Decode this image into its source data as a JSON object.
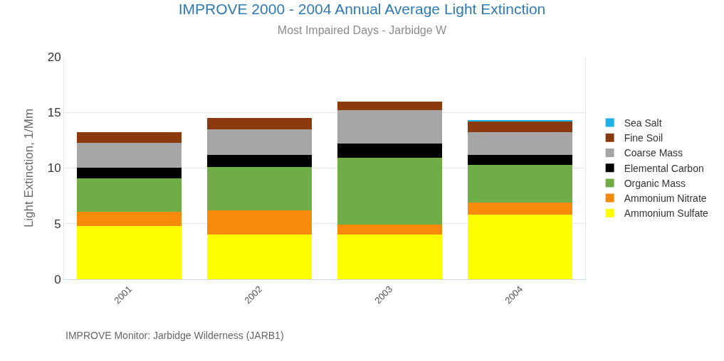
{
  "chart_data": {
    "type": "bar",
    "stacked": true,
    "title": "IMPROVE 2000 - 2004 Annual Average Light Extinction",
    "subtitle": "Most Impaired Days - Jarbidge W",
    "ylabel": "Light Extinction, 1/Mm",
    "categories": [
      "2001",
      "2002",
      "2003",
      "2004"
    ],
    "series": [
      {
        "name": "Ammonium Sulfate",
        "color": "#ffff00",
        "values": [
          4.8,
          4.0,
          4.0,
          5.8
        ]
      },
      {
        "name": "Ammonium Nitrate",
        "color": "#f78a0b",
        "values": [
          1.3,
          2.2,
          0.9,
          1.1
        ]
      },
      {
        "name": "Organic Mass",
        "color": "#70ad47",
        "values": [
          3.0,
          3.9,
          6.0,
          3.4
        ]
      },
      {
        "name": "Elemental Carbon",
        "color": "#000000",
        "values": [
          0.95,
          1.1,
          1.3,
          0.9
        ]
      },
      {
        "name": "Coarse Mass",
        "color": "#a6a6a6",
        "values": [
          2.2,
          2.3,
          3.0,
          2.0
        ]
      },
      {
        "name": "Fine Soil",
        "color": "#8b3a0e",
        "values": [
          1.0,
          1.0,
          0.8,
          1.0
        ]
      },
      {
        "name": "Sea Salt",
        "color": "#1ab2e8",
        "values": [
          0,
          0,
          0,
          0.08
        ]
      }
    ],
    "ylim": [
      0,
      20
    ],
    "yticks": [
      0,
      5,
      10,
      15,
      20
    ],
    "grid": "y",
    "legend": "right",
    "annotations": [
      "IMPROVE Monitor: Jarbidge Wilderness (JARB1)"
    ]
  }
}
